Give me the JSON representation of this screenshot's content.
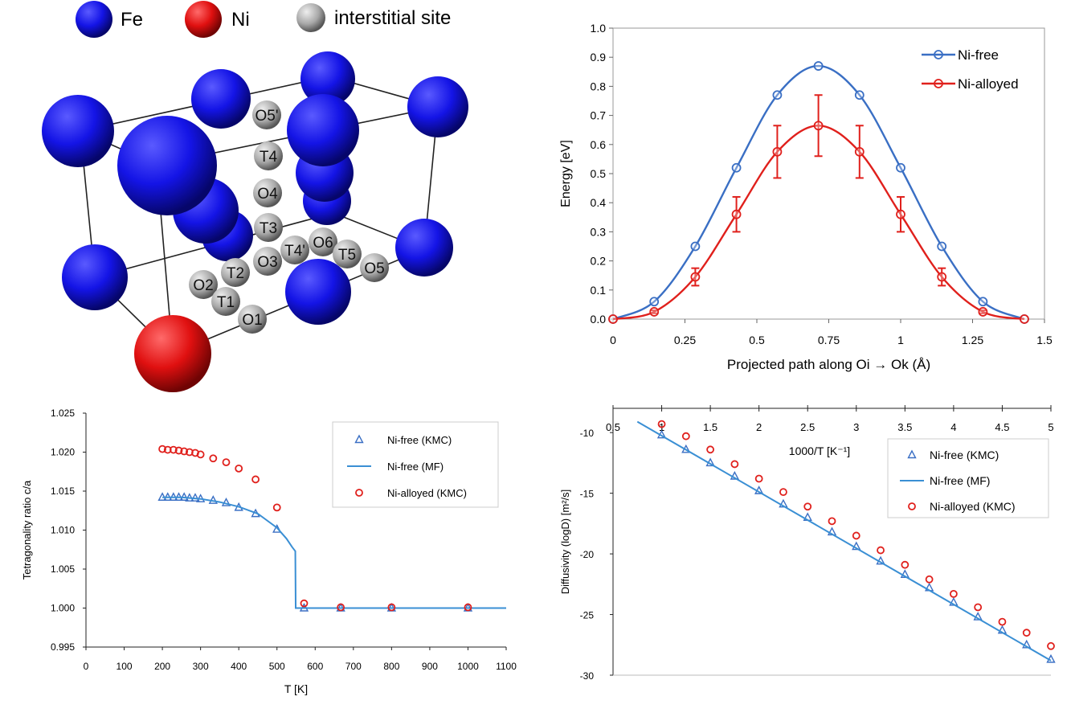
{
  "structure": {
    "legend": [
      {
        "label": "Fe",
        "color": "#1010e0"
      },
      {
        "label": "Ni",
        "color": "#e01010"
      },
      {
        "label": "interstitial site",
        "color": "#a8a8a8"
      }
    ],
    "site_labels": [
      "O5'",
      "T4",
      "O4",
      "T3",
      "T4'",
      "O6",
      "T5",
      "O5",
      "O3",
      "T2",
      "O2",
      "T1",
      "O1"
    ]
  },
  "chart_data": [
    {
      "id": "energy-barrier",
      "type": "line",
      "xlabel": "Projected path along Oi → Ok (Å)",
      "ylabel": "Energy [eV]",
      "xlim": [
        0,
        1.5
      ],
      "ylim": [
        0,
        1.0
      ],
      "xticks": [
        "0",
        "0.25",
        "0.5",
        "0.75",
        "1",
        "1.25",
        "1.5"
      ],
      "yticks": [
        "0.0",
        "0.1",
        "0.2",
        "0.3",
        "0.4",
        "0.5",
        "0.6",
        "0.7",
        "0.8",
        "0.9",
        "1.0"
      ],
      "legend_position": "top-right",
      "series": [
        {
          "name": "Ni-free",
          "color": "#3a6fc4",
          "x": [
            0,
            0.143,
            0.286,
            0.429,
            0.571,
            0.714,
            0.857,
            1.0,
            1.143,
            1.286,
            1.43
          ],
          "y": [
            0,
            0.06,
            0.25,
            0.52,
            0.77,
            0.87,
            0.77,
            0.52,
            0.25,
            0.06,
            0
          ]
        },
        {
          "name": "Ni-alloyed",
          "color": "#e0201c",
          "x": [
            0,
            0.143,
            0.286,
            0.429,
            0.571,
            0.714,
            0.857,
            1.0,
            1.143,
            1.286,
            1.43
          ],
          "y": [
            0,
            0.025,
            0.145,
            0.36,
            0.575,
            0.665,
            0.575,
            0.36,
            0.145,
            0.025,
            0
          ],
          "err": [
            0,
            0.005,
            0.03,
            0.06,
            0.09,
            0.105,
            0.09,
            0.06,
            0.03,
            0.005,
            0
          ]
        }
      ]
    },
    {
      "id": "tetragonality",
      "type": "scatter",
      "xlabel": "T [K]",
      "ylabel": "Tetragonality ratio c/a",
      "xlim": [
        0,
        1100
      ],
      "ylim": [
        0.995,
        1.025
      ],
      "xticks": [
        "0",
        "100",
        "200",
        "300",
        "400",
        "500",
        "600",
        "700",
        "800",
        "900",
        "1000",
        "1100"
      ],
      "yticks": [
        "0.995",
        "1.000",
        "1.005",
        "1.010",
        "1.015",
        "1.020",
        "1.025"
      ],
      "legend_position": "top-right",
      "series": [
        {
          "name": "Ni-free (KMC)",
          "color": "#3a6fc4",
          "marker": "triangle",
          "x": [
            200,
            214,
            229,
            243,
            257,
            271,
            286,
            300,
            333,
            367,
            400,
            444,
            500,
            571,
            667,
            800,
            1000
          ],
          "y": [
            1.0142,
            1.0142,
            1.0142,
            1.0142,
            1.0142,
            1.0141,
            1.0141,
            1.014,
            1.0138,
            1.0135,
            1.0129,
            1.0121,
            1.0101,
            1.0,
            1.0,
            1.0,
            1.0
          ]
        },
        {
          "name": "Ni-free (MF)",
          "color": "#3a8fd4",
          "marker": "line",
          "x": [
            200,
            250,
            300,
            350,
            400,
            450,
            500,
            525,
            540,
            548,
            549,
            560,
            600,
            700,
            800,
            900,
            1000,
            1100
          ],
          "y": [
            1.0142,
            1.0142,
            1.014,
            1.0136,
            1.013,
            1.0121,
            1.0103,
            1.0089,
            1.0078,
            1.0073,
            1.0,
            1.0,
            1.0,
            1.0,
            1.0,
            1.0,
            1.0,
            1.0
          ]
        },
        {
          "name": "Ni-alloyed (KMC)",
          "color": "#e0201c",
          "marker": "circle",
          "x": [
            200,
            214,
            229,
            243,
            257,
            271,
            286,
            300,
            333,
            367,
            400,
            444,
            500,
            571,
            667,
            800,
            1000
          ],
          "y": [
            1.0204,
            1.0203,
            1.0203,
            1.0202,
            1.0201,
            1.02,
            1.0199,
            1.0197,
            1.0192,
            1.0187,
            1.0179,
            1.0165,
            1.0129,
            1.0006,
            1.0001,
            1.0001,
            1.0001
          ]
        }
      ]
    },
    {
      "id": "diffusivity",
      "type": "scatter",
      "xlabel": "1000/T  [K⁻¹]",
      "ylabel": "Diffusivity (logD)  [m²/s]",
      "xlim": [
        0.5,
        5
      ],
      "ylim": [
        -30,
        -8
      ],
      "xticks": [
        "0.5",
        "1",
        "1.5",
        "2",
        "2.5",
        "3",
        "3.5",
        "4",
        "4.5",
        "5"
      ],
      "yticks": [
        "-10",
        "-15",
        "-20",
        "-25",
        "-30"
      ],
      "xaxis_position": "top",
      "legend_position": "top-right",
      "series": [
        {
          "name": "Ni-free (KMC)",
          "color": "#3a6fc4",
          "marker": "triangle",
          "x": [
            1,
            1.25,
            1.5,
            1.75,
            2,
            2.25,
            2.5,
            2.75,
            3,
            3.25,
            3.5,
            3.75,
            4,
            4.25,
            4.5,
            4.75,
            5
          ],
          "y": [
            -10.2,
            -11.4,
            -12.5,
            -13.6,
            -14.8,
            -15.9,
            -17.0,
            -18.2,
            -19.4,
            -20.6,
            -21.7,
            -22.8,
            -24.0,
            -25.2,
            -26.3,
            -27.5,
            -28.7
          ]
        },
        {
          "name": "Ni-free (MF)",
          "color": "#3a8fd4",
          "marker": "line",
          "x": [
            0.75,
            5
          ],
          "y": [
            -9.1,
            -28.8
          ]
        },
        {
          "name": "Ni-alloyed (KMC)",
          "color": "#e0201c",
          "marker": "circle",
          "x": [
            1,
            1.25,
            1.5,
            1.75,
            2,
            2.25,
            2.5,
            2.75,
            3,
            3.25,
            3.5,
            3.75,
            4,
            4.25,
            4.5,
            4.75,
            5
          ],
          "y": [
            -9.3,
            -10.3,
            -11.4,
            -12.6,
            -13.8,
            -14.9,
            -16.1,
            -17.3,
            -18.5,
            -19.7,
            -20.9,
            -22.1,
            -23.3,
            -24.4,
            -25.6,
            -26.5,
            -27.6
          ]
        }
      ]
    }
  ]
}
